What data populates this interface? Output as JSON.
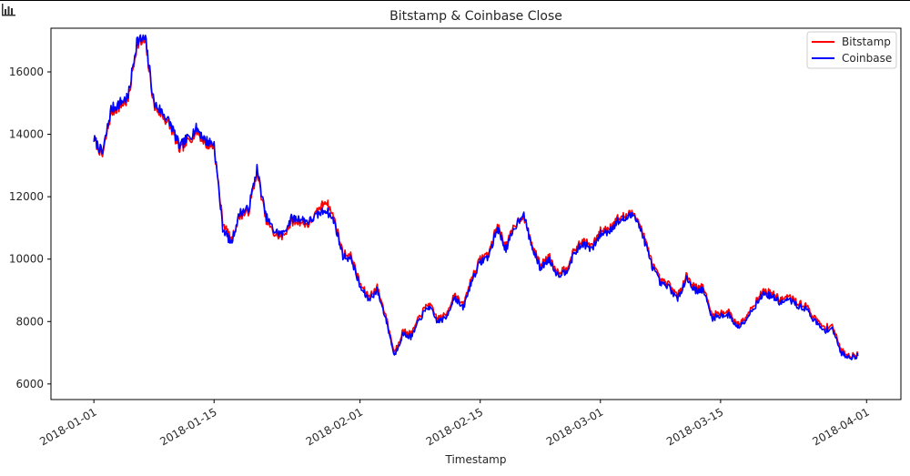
{
  "chart_data": {
    "type": "line",
    "title": "Bitstamp & Coinbase Close",
    "xlabel": "Timestamp",
    "ylabel": "",
    "x_ticks": [
      "2018-01-01",
      "2018-01-15",
      "2018-02-01",
      "2018-02-15",
      "2018-03-01",
      "2018-03-15",
      "2018-04-01"
    ],
    "y_ticks": [
      6000,
      8000,
      10000,
      12000,
      14000,
      16000
    ],
    "xlim": [
      "2017-12-27",
      "2018-04-05"
    ],
    "ylim": [
      5500,
      17400
    ],
    "grid": false,
    "legend_position": "top-right",
    "series": [
      {
        "name": "Bitstamp",
        "color": "#ff0000",
        "points": [
          [
            "2018-01-01",
            13850
          ],
          [
            "2018-01-02",
            13300
          ],
          [
            "2018-01-03",
            14700
          ],
          [
            "2018-01-04",
            14900
          ],
          [
            "2018-01-05",
            15100
          ],
          [
            "2018-01-06",
            16900
          ],
          [
            "2018-01-07",
            16950
          ],
          [
            "2018-01-08",
            14900
          ],
          [
            "2018-01-09",
            14600
          ],
          [
            "2018-01-10",
            14200
          ],
          [
            "2018-01-11",
            13500
          ],
          [
            "2018-01-12",
            13800
          ],
          [
            "2018-01-13",
            14100
          ],
          [
            "2018-01-14",
            13700
          ],
          [
            "2018-01-15",
            13600
          ],
          [
            "2018-01-16",
            11200
          ],
          [
            "2018-01-17",
            10600
          ],
          [
            "2018-01-18",
            11400
          ],
          [
            "2018-01-19",
            11500
          ],
          [
            "2018-01-20",
            12800
          ],
          [
            "2018-01-21",
            11300
          ],
          [
            "2018-01-22",
            10800
          ],
          [
            "2018-01-23",
            10700
          ],
          [
            "2018-01-24",
            11200
          ],
          [
            "2018-01-25",
            11200
          ],
          [
            "2018-01-26",
            11100
          ],
          [
            "2018-01-27",
            11500
          ],
          [
            "2018-01-28",
            11900
          ],
          [
            "2018-01-29",
            11300
          ],
          [
            "2018-01-30",
            10200
          ],
          [
            "2018-01-31",
            10100
          ],
          [
            "2018-02-01",
            9200
          ],
          [
            "2018-02-02",
            8800
          ],
          [
            "2018-02-03",
            9100
          ],
          [
            "2018-02-04",
            8200
          ],
          [
            "2018-02-05",
            7000
          ],
          [
            "2018-02-06",
            7700
          ],
          [
            "2018-02-07",
            7600
          ],
          [
            "2018-02-08",
            8200
          ],
          [
            "2018-02-09",
            8600
          ],
          [
            "2018-02-10",
            8100
          ],
          [
            "2018-02-11",
            8200
          ],
          [
            "2018-02-12",
            8900
          ],
          [
            "2018-02-13",
            8500
          ],
          [
            "2018-02-14",
            9400
          ],
          [
            "2018-02-15",
            10000
          ],
          [
            "2018-02-16",
            10200
          ],
          [
            "2018-02-17",
            11100
          ],
          [
            "2018-02-18",
            10400
          ],
          [
            "2018-02-19",
            11100
          ],
          [
            "2018-02-20",
            11400
          ],
          [
            "2018-02-21",
            10500
          ],
          [
            "2018-02-22",
            9800
          ],
          [
            "2018-02-23",
            10100
          ],
          [
            "2018-02-24",
            9600
          ],
          [
            "2018-02-25",
            9700
          ],
          [
            "2018-02-26",
            10300
          ],
          [
            "2018-02-27",
            10600
          ],
          [
            "2018-02-28",
            10400
          ],
          [
            "2018-03-01",
            10900
          ],
          [
            "2018-03-02",
            11000
          ],
          [
            "2018-03-03",
            11300
          ],
          [
            "2018-03-04",
            11400
          ],
          [
            "2018-03-05",
            11500
          ],
          [
            "2018-03-06",
            10800
          ],
          [
            "2018-03-07",
            9900
          ],
          [
            "2018-03-08",
            9300
          ],
          [
            "2018-03-09",
            9200
          ],
          [
            "2018-03-10",
            8800
          ],
          [
            "2018-03-11",
            9500
          ],
          [
            "2018-03-12",
            9100
          ],
          [
            "2018-03-13",
            9100
          ],
          [
            "2018-03-14",
            8200
          ],
          [
            "2018-03-15",
            8300
          ],
          [
            "2018-03-16",
            8300
          ],
          [
            "2018-03-17",
            7900
          ],
          [
            "2018-03-18",
            8200
          ],
          [
            "2018-03-19",
            8600
          ],
          [
            "2018-03-20",
            9000
          ],
          [
            "2018-03-21",
            8900
          ],
          [
            "2018-03-22",
            8700
          ],
          [
            "2018-03-23",
            8800
          ],
          [
            "2018-03-24",
            8600
          ],
          [
            "2018-03-25",
            8500
          ],
          [
            "2018-03-26",
            8100
          ],
          [
            "2018-03-27",
            7800
          ],
          [
            "2018-03-28",
            7900
          ],
          [
            "2018-03-29",
            7100
          ],
          [
            "2018-03-30",
            6900
          ],
          [
            "2018-03-31",
            6950
          ]
        ]
      },
      {
        "name": "Coinbase",
        "color": "#0000ff",
        "points": [
          [
            "2018-01-01",
            13850
          ],
          [
            "2018-01-02",
            13400
          ],
          [
            "2018-01-03",
            14800
          ],
          [
            "2018-01-04",
            15000
          ],
          [
            "2018-01-05",
            15200
          ],
          [
            "2018-01-06",
            17000
          ],
          [
            "2018-01-07",
            17050
          ],
          [
            "2018-01-08",
            15000
          ],
          [
            "2018-01-09",
            14700
          ],
          [
            "2018-01-10",
            14300
          ],
          [
            "2018-01-11",
            13600
          ],
          [
            "2018-01-12",
            13900
          ],
          [
            "2018-01-13",
            14200
          ],
          [
            "2018-01-14",
            13800
          ],
          [
            "2018-01-15",
            13700
          ],
          [
            "2018-01-16",
            11000
          ],
          [
            "2018-01-17",
            10500
          ],
          [
            "2018-01-18",
            11500
          ],
          [
            "2018-01-19",
            11600
          ],
          [
            "2018-01-20",
            12900
          ],
          [
            "2018-01-21",
            11400
          ],
          [
            "2018-01-22",
            10900
          ],
          [
            "2018-01-23",
            10800
          ],
          [
            "2018-01-24",
            11300
          ],
          [
            "2018-01-25",
            11300
          ],
          [
            "2018-01-26",
            11200
          ],
          [
            "2018-01-27",
            11400
          ],
          [
            "2018-01-28",
            11600
          ],
          [
            "2018-01-29",
            11200
          ],
          [
            "2018-01-30",
            10100
          ],
          [
            "2018-01-31",
            10000
          ],
          [
            "2018-02-01",
            9100
          ],
          [
            "2018-02-02",
            8700
          ],
          [
            "2018-02-03",
            9000
          ],
          [
            "2018-02-04",
            8100
          ],
          [
            "2018-02-05",
            6900
          ],
          [
            "2018-02-06",
            7600
          ],
          [
            "2018-02-07",
            7500
          ],
          [
            "2018-02-08",
            8100
          ],
          [
            "2018-02-09",
            8500
          ],
          [
            "2018-02-10",
            8000
          ],
          [
            "2018-02-11",
            8100
          ],
          [
            "2018-02-12",
            8800
          ],
          [
            "2018-02-13",
            8400
          ],
          [
            "2018-02-14",
            9300
          ],
          [
            "2018-02-15",
            9900
          ],
          [
            "2018-02-16",
            10100
          ],
          [
            "2018-02-17",
            11000
          ],
          [
            "2018-02-18",
            10300
          ],
          [
            "2018-02-19",
            11000
          ],
          [
            "2018-02-20",
            11500
          ],
          [
            "2018-02-21",
            10400
          ],
          [
            "2018-02-22",
            9700
          ],
          [
            "2018-02-23",
            10000
          ],
          [
            "2018-02-24",
            9500
          ],
          [
            "2018-02-25",
            9600
          ],
          [
            "2018-02-26",
            10200
          ],
          [
            "2018-02-27",
            10500
          ],
          [
            "2018-02-28",
            10300
          ],
          [
            "2018-03-01",
            10800
          ],
          [
            "2018-03-02",
            10900
          ],
          [
            "2018-03-03",
            11200
          ],
          [
            "2018-03-04",
            11300
          ],
          [
            "2018-03-05",
            11450
          ],
          [
            "2018-03-06",
            10700
          ],
          [
            "2018-03-07",
            9800
          ],
          [
            "2018-03-08",
            9200
          ],
          [
            "2018-03-09",
            9100
          ],
          [
            "2018-03-10",
            8700
          ],
          [
            "2018-03-11",
            9400
          ],
          [
            "2018-03-12",
            9000
          ],
          [
            "2018-03-13",
            9000
          ],
          [
            "2018-03-14",
            8100
          ],
          [
            "2018-03-15",
            8200
          ],
          [
            "2018-03-16",
            8200
          ],
          [
            "2018-03-17",
            7800
          ],
          [
            "2018-03-18",
            8100
          ],
          [
            "2018-03-19",
            8500
          ],
          [
            "2018-03-20",
            8900
          ],
          [
            "2018-03-21",
            8800
          ],
          [
            "2018-03-22",
            8600
          ],
          [
            "2018-03-23",
            8700
          ],
          [
            "2018-03-24",
            8500
          ],
          [
            "2018-03-25",
            8400
          ],
          [
            "2018-03-26",
            8000
          ],
          [
            "2018-03-27",
            7700
          ],
          [
            "2018-03-28",
            7800
          ],
          [
            "2018-03-29",
            7000
          ],
          [
            "2018-03-30",
            6850
          ],
          [
            "2018-03-31",
            6900
          ]
        ]
      }
    ]
  }
}
